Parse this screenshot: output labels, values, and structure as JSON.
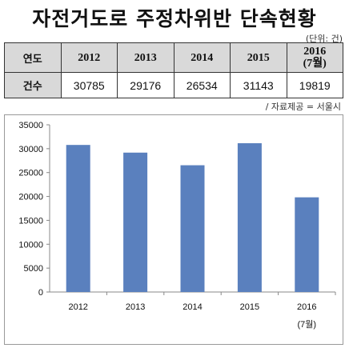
{
  "title": "자전거도로 주정차위반 단속현황",
  "unit_note": "(단위: 건)",
  "source_note": "/ 자료제공 = 서울시",
  "table": {
    "row_header_year": "연도",
    "row_header_count": "건수",
    "years": [
      "2012",
      "2013",
      "2014",
      "2015",
      "2016\n(7월)"
    ],
    "counts": [
      "30785",
      "29176",
      "26534",
      "31143",
      "19819"
    ]
  },
  "chart_data": {
    "type": "bar",
    "categories": [
      "2012",
      "2013",
      "2014",
      "2015",
      "2016"
    ],
    "category_sublabels": [
      "",
      "",
      "",
      "",
      "(7월)"
    ],
    "values": [
      30785,
      29176,
      26534,
      31143,
      19819
    ],
    "ylim": [
      0,
      35000
    ],
    "yticks": [
      0,
      5000,
      10000,
      15000,
      20000,
      25000,
      30000,
      35000
    ],
    "grid": false,
    "legend": "none",
    "bar_color": "#5a80be"
  }
}
